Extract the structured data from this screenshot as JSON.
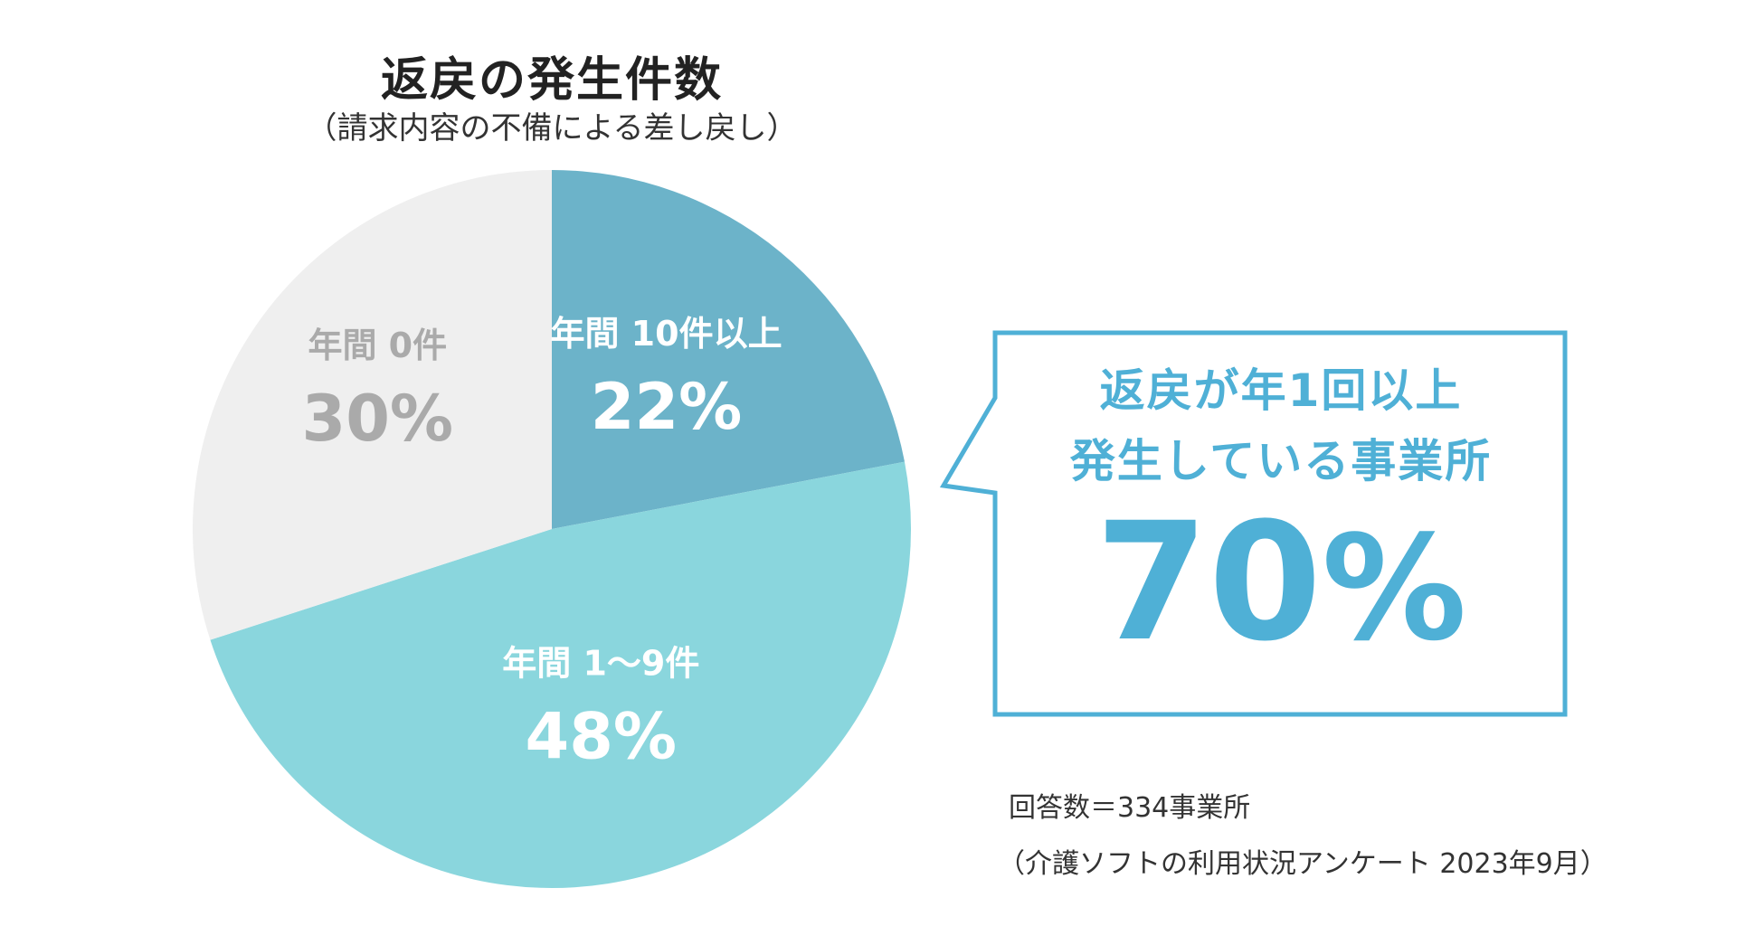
{
  "title": "返戻の発生件数",
  "subtitle": "（請求内容の不備による差し戻し）",
  "chart_data": {
    "type": "pie",
    "title": "返戻の発生件数",
    "subtitle": "（請求内容の不備による差し戻し）",
    "slices": [
      {
        "label": "年間 10件以上",
        "value": 22,
        "display": "22%",
        "color": "#6cb3c9",
        "text_color": "#ffffff"
      },
      {
        "label": "年間 1〜9件",
        "value": 48,
        "display": "48%",
        "color": "#8ad6dd",
        "text_color": "#ffffff"
      },
      {
        "label": "年間 0件",
        "value": 30,
        "display": "30%",
        "color": "#efefef",
        "text_color": "#aaaaaa"
      }
    ],
    "start": "12 o'clock",
    "direction": "clockwise",
    "legend": "none"
  },
  "callout": {
    "line1": "返戻が年1回以上",
    "line2": "発生している事業所",
    "value_number": "70",
    "value_unit": "%",
    "color": "#4fb0d6"
  },
  "notes": {
    "respondents": "回答数＝334事業所",
    "source": "（介護ソフトの利用状況アンケート 2023年9月）"
  }
}
